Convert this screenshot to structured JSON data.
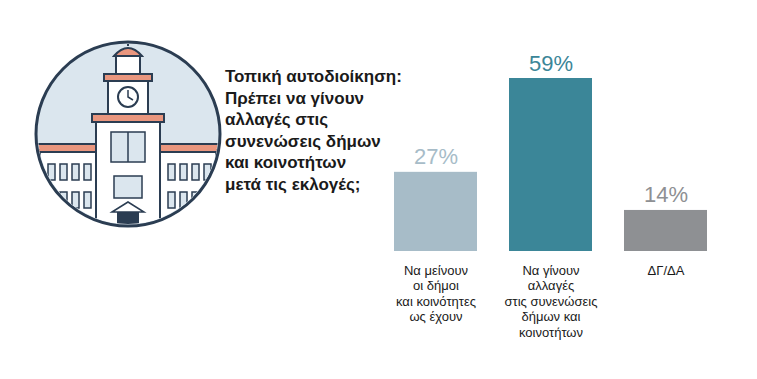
{
  "chart_data": {
    "type": "bar",
    "title": "Τοπική αυτοδιοίκηση:\nΠρέπει να γίνουν\nαλλαγές στις\nσυνενώσεις δήμων\nκαι κοινοτήτων\nμετά τις εκλογές;",
    "categories": [
      "Να μείνουν\nοι δήμοι\nκαι κοινότητες\nως έχουν",
      "Να γίνουν\nαλλαγές\nστις συνενώσεις\nδήμων και\nκοινοτήτων",
      "ΔΓ/ΔΑ"
    ],
    "values": [
      27,
      59,
      14
    ],
    "value_labels": [
      "27%",
      "59%",
      "14%"
    ],
    "colors": [
      "#a7bcc8",
      "#3b8698",
      "#8e9093"
    ],
    "ylim": [
      0,
      59
    ],
    "data_labels": true,
    "tick_labels": "x"
  }
}
